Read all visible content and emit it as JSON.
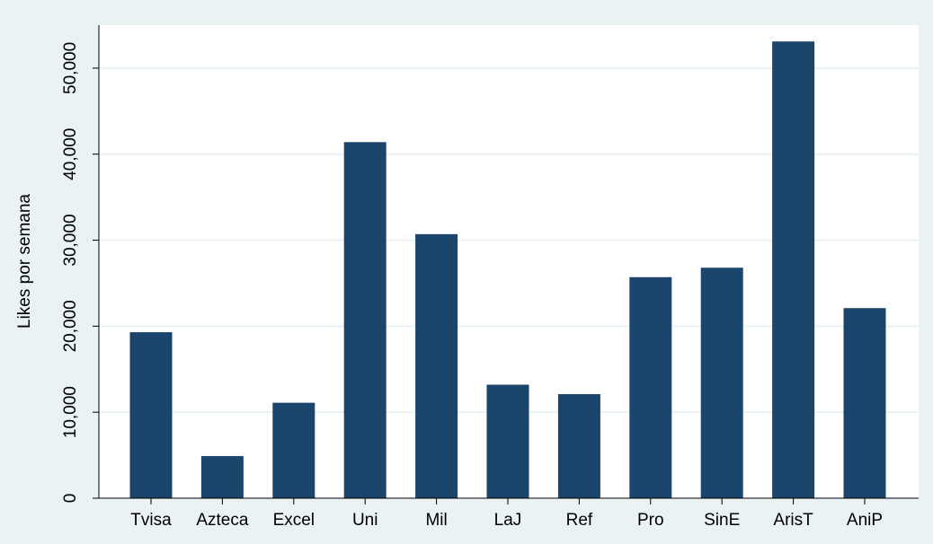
{
  "chart_data": {
    "type": "bar",
    "categories": [
      "Tvisa",
      "Azteca",
      "Excel",
      "Uni",
      "Mil",
      "LaJ",
      "Ref",
      "Pro",
      "SinE",
      "ArisT",
      "AniP"
    ],
    "values": [
      19300,
      4900,
      11100,
      41400,
      30700,
      13200,
      12100,
      25700,
      26800,
      53100,
      22100
    ],
    "title": "",
    "xlabel": "",
    "ylabel": "Likes por semana",
    "ylim": [
      0,
      55000
    ],
    "yticks": [
      0,
      10000,
      20000,
      30000,
      40000,
      50000
    ],
    "ytick_labels": [
      "0",
      "10,000",
      "20,000",
      "30,000",
      "40,000",
      "50,000"
    ],
    "grid": true,
    "colors": {
      "bar": "#1b456b",
      "plot_bg": "#ffffff",
      "page_bg": "#eaf2f3",
      "grid": "#eaf2f3"
    }
  }
}
